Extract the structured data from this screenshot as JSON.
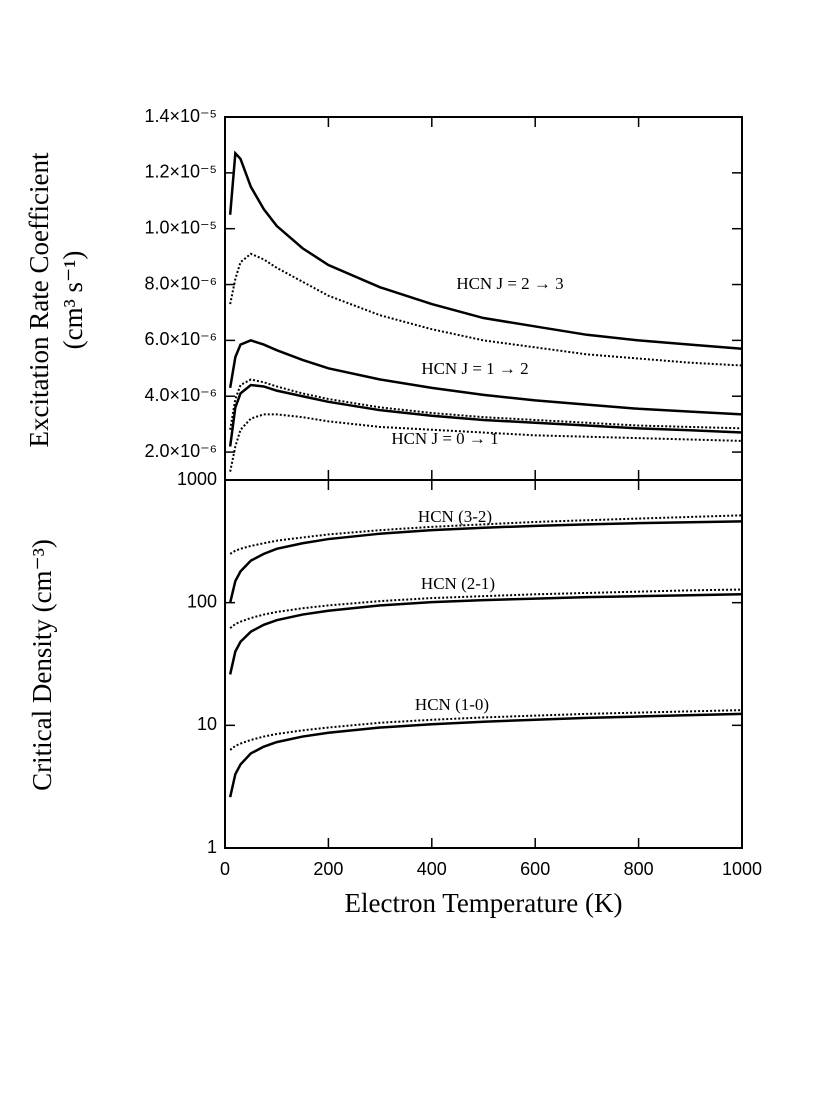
{
  "chart_data": [
    {
      "type": "line",
      "ylabel": [
        "Excitation Rate Coefficient",
        "(cm³ s⁻¹)"
      ],
      "x": [
        10,
        20,
        30,
        50,
        75,
        100,
        150,
        200,
        300,
        400,
        500,
        600,
        700,
        800,
        900,
        1000
      ],
      "xlim": [
        0,
        1000
      ],
      "xticks": [
        0,
        200,
        400,
        600,
        800,
        1000
      ],
      "ylim": [
        1e-06,
        1.4e-05
      ],
      "yticks": [
        {
          "value": 2e-06,
          "label": "2.0×10⁻⁶"
        },
        {
          "value": 4e-06,
          "label": "4.0×10⁻⁶"
        },
        {
          "value": 6e-06,
          "label": "6.0×10⁻⁶"
        },
        {
          "value": 8e-06,
          "label": "8.0×10⁻⁶"
        },
        {
          "value": 1e-05,
          "label": "1.0×10⁻⁵"
        },
        {
          "value": 1.2e-05,
          "label": "1.2×10⁻⁵"
        },
        {
          "value": 1.4e-05,
          "label": "1.4×10⁻⁵"
        }
      ],
      "series": [
        {
          "color": "#000000",
          "style": "solid",
          "values": [
            1.05e-05,
            1.27e-05,
            1.25e-05,
            1.15e-05,
            1.07e-05,
            1.01e-05,
            9.3e-06,
            8.7e-06,
            7.9e-06,
            7.3e-06,
            6.8e-06,
            6.5e-06,
            6.2e-06,
            6e-06,
            5.85e-06,
            5.7e-06
          ]
        },
        {
          "color": "#000000",
          "style": "dotted",
          "values": [
            7.3e-06,
            8.2e-06,
            8.8e-06,
            9.1e-06,
            8.9e-06,
            8.6e-06,
            8.1e-06,
            7.6e-06,
            6.9e-06,
            6.4e-06,
            6e-06,
            5.75e-06,
            5.5e-06,
            5.35e-06,
            5.2e-06,
            5.1e-06
          ]
        },
        {
          "color": "#000000",
          "style": "solid",
          "values": [
            4.3e-06,
            5.4e-06,
            5.85e-06,
            6e-06,
            5.85e-06,
            5.65e-06,
            5.3e-06,
            5e-06,
            4.6e-06,
            4.3e-06,
            4.05e-06,
            3.85e-06,
            3.7e-06,
            3.55e-06,
            3.45e-06,
            3.35e-06
          ]
        },
        {
          "color": "#000000",
          "style": "dotted",
          "values": [
            2.8e-06,
            3.9e-06,
            4.4e-06,
            4.6e-06,
            4.5e-06,
            4.35e-06,
            4.1e-06,
            3.9e-06,
            3.6e-06,
            3.4e-06,
            3.25e-06,
            3.15e-06,
            3.05e-06,
            2.95e-06,
            2.9e-06,
            2.85e-06
          ]
        },
        {
          "color": "#000000",
          "style": "solid",
          "values": [
            2.2e-06,
            3.6e-06,
            4.1e-06,
            4.4e-06,
            4.35e-06,
            4.2e-06,
            4e-06,
            3.8e-06,
            3.5e-06,
            3.3e-06,
            3.15e-06,
            3.05e-06,
            2.95e-06,
            2.85e-06,
            2.78e-06,
            2.7e-06
          ]
        },
        {
          "color": "#000000",
          "style": "dotted",
          "values": [
            1.3e-06,
            2.2e-06,
            2.8e-06,
            3.2e-06,
            3.35e-06,
            3.35e-06,
            3.25e-06,
            3.1e-06,
            2.9e-06,
            2.8e-06,
            2.7e-06,
            2.6e-06,
            2.55e-06,
            2.5e-06,
            2.45e-06,
            2.4e-06
          ]
        }
      ],
      "annotations": [
        "HCN J = 2 → 3",
        "HCN J = 1 → 2",
        "HCN J = 0 → 1"
      ]
    },
    {
      "type": "line",
      "ylabel": [
        "Critical Density (cm⁻³)"
      ],
      "xlabel": "Electron Temperature (K)",
      "x": [
        10,
        20,
        30,
        50,
        75,
        100,
        150,
        200,
        300,
        400,
        500,
        600,
        700,
        800,
        900,
        1000
      ],
      "xlim": [
        0,
        1000
      ],
      "xticks": [
        0,
        200,
        400,
        600,
        800,
        1000
      ],
      "ylim": [
        1,
        1000
      ],
      "yticks": [
        1,
        10,
        100,
        1000
      ],
      "log_y": true,
      "series": [
        {
          "color": "#000000",
          "style": "solid",
          "values": [
            100,
            150,
            180,
            220,
            250,
            275,
            305,
            330,
            365,
            390,
            408,
            423,
            435,
            445,
            452,
            460
          ]
        },
        {
          "color": "#000000",
          "style": "dotted",
          "values": [
            250,
            265,
            275,
            290,
            305,
            320,
            340,
            360,
            390,
            415,
            435,
            455,
            470,
            485,
            500,
            515
          ]
        },
        {
          "color": "#000000",
          "style": "solid",
          "values": [
            26,
            40,
            48,
            58,
            66,
            72,
            80,
            86,
            95,
            101,
            105,
            108,
            111,
            113,
            115,
            117
          ]
        },
        {
          "color": "#000000",
          "style": "dotted",
          "values": [
            62,
            67,
            70,
            75,
            80,
            84,
            90,
            95,
            103,
            109,
            113,
            117,
            120,
            123,
            126,
            128
          ]
        },
        {
          "color": "#000000",
          "style": "solid",
          "values": [
            2.6,
            4.0,
            4.8,
            5.9,
            6.7,
            7.3,
            8.1,
            8.7,
            9.6,
            10.2,
            10.7,
            11.1,
            11.5,
            11.8,
            12.1,
            12.4
          ]
        },
        {
          "color": "#000000",
          "style": "dotted",
          "values": [
            6.3,
            6.8,
            7.1,
            7.6,
            8.1,
            8.5,
            9.1,
            9.6,
            10.5,
            11.1,
            11.6,
            12.0,
            12.4,
            12.7,
            13.0,
            13.3
          ]
        }
      ],
      "annotations": [
        "HCN (3-2)",
        "HCN (2-1)",
        "HCN (1-0)"
      ]
    }
  ]
}
